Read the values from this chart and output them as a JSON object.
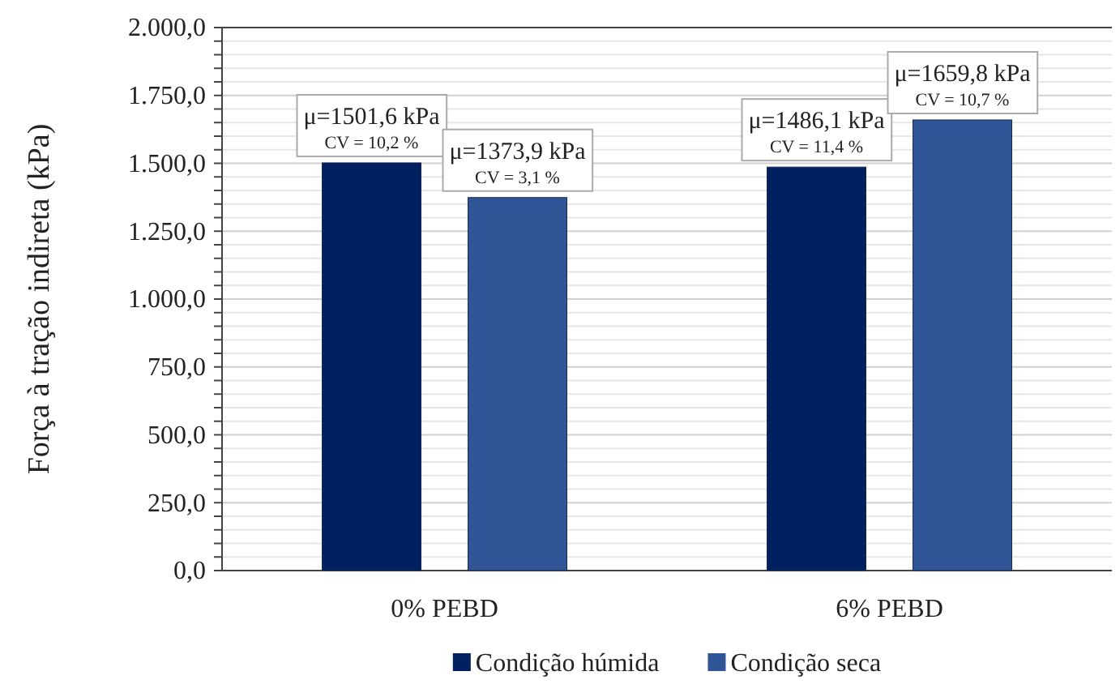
{
  "chart_data": {
    "type": "bar",
    "ylabel": "Força à tração indireta (kPa)",
    "categories": [
      "0% PEBD",
      "6% PEBD"
    ],
    "series": [
      {
        "name": "Condição húmida",
        "color": "#002060",
        "values": [
          1501.6,
          1486.1
        ],
        "value_labels": [
          "μ=1501,6 kPa\nCV = 10,2 %",
          "μ=1486,1 kPa\nCV = 11,4 %"
        ]
      },
      {
        "name": "Condição seca",
        "color": "#2f5597",
        "values": [
          1373.9,
          1659.8
        ],
        "value_labels": [
          "μ=1373,9 kPa\nCV = 3,1 %",
          "μ=1659,8 kPa\nCV = 10,7 %"
        ]
      }
    ],
    "ylim": [
      0,
      2000
    ],
    "yticks": [
      {
        "value": 0,
        "label": "0,0"
      },
      {
        "value": 50,
        "label": null
      },
      {
        "value": 100,
        "label": null
      },
      {
        "value": 150,
        "label": null
      },
      {
        "value": 200,
        "label": null
      },
      {
        "value": 250,
        "label": "250,0"
      },
      {
        "value": 300,
        "label": null
      },
      {
        "value": 350,
        "label": null
      },
      {
        "value": 400,
        "label": null
      },
      {
        "value": 450,
        "label": null
      },
      {
        "value": 500,
        "label": "500,0"
      },
      {
        "value": 550,
        "label": null
      },
      {
        "value": 600,
        "label": null
      },
      {
        "value": 650,
        "label": null
      },
      {
        "value": 700,
        "label": null
      },
      {
        "value": 750,
        "label": "750,0"
      },
      {
        "value": 800,
        "label": null
      },
      {
        "value": 850,
        "label": null
      },
      {
        "value": 900,
        "label": null
      },
      {
        "value": 950,
        "label": null
      },
      {
        "value": 1000,
        "label": "1.000,0"
      },
      {
        "value": 1050,
        "label": null
      },
      {
        "value": 1100,
        "label": null
      },
      {
        "value": 1150,
        "label": null
      },
      {
        "value": 1200,
        "label": null
      },
      {
        "value": 1250,
        "label": "1.250,0"
      },
      {
        "value": 1300,
        "label": null
      },
      {
        "value": 1350,
        "label": null
      },
      {
        "value": 1400,
        "label": null
      },
      {
        "value": 1450,
        "label": null
      },
      {
        "value": 1500,
        "label": "1.500,0"
      },
      {
        "value": 1550,
        "label": null
      },
      {
        "value": 1600,
        "label": null
      },
      {
        "value": 1650,
        "label": null
      },
      {
        "value": 1700,
        "label": null
      },
      {
        "value": 1750,
        "label": "1.750,0"
      },
      {
        "value": 1800,
        "label": null
      },
      {
        "value": 1850,
        "label": null
      },
      {
        "value": 1900,
        "label": null
      },
      {
        "value": 1950,
        "label": null
      },
      {
        "value": 2000,
        "label": "2.000,0"
      }
    ],
    "grid": "y",
    "legend": "bottom"
  }
}
